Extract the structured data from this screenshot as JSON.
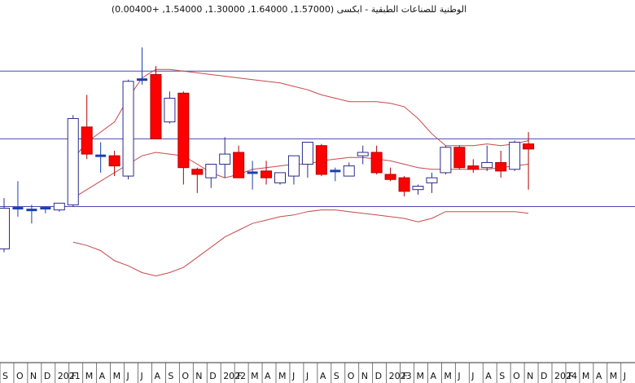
{
  "chart_data": {
    "type": "candlestick",
    "title": "الوطنية للصناعات الطبقية - ابكسى (1.57000, 1.64000, 1.30000, 1.54000, +0.00400)",
    "period": "monthly",
    "x_labels": [
      "S",
      "O",
      "N",
      "D",
      "2021",
      "F",
      "M",
      "A",
      "M",
      "J",
      "J",
      "A",
      "S",
      "O",
      "N",
      "D",
      "2022",
      "F",
      "M",
      "A",
      "M",
      "J",
      "J",
      "A",
      "S",
      "O",
      "N",
      "D",
      "2023",
      "F",
      "M",
      "A",
      "M",
      "J",
      "J",
      "A",
      "S",
      "O",
      "N",
      "D",
      "2024",
      "F",
      "M",
      "A",
      "M",
      "J"
    ],
    "ylim": [
      0.35,
      2.3
    ],
    "horizontal_lines": [
      2.0,
      1.6,
      1.2
    ],
    "grid": false,
    "colors": {
      "bull_body": "#ffffff",
      "bull_border": "#2b2b8c",
      "bear_body": "#ff0000",
      "bear_border": "#b00000",
      "doji": "#1a3fb0",
      "bollinger": "#c8484a",
      "hline": "#4a4ab0",
      "axis": "#333333"
    },
    "candles": [
      {
        "date": "2020-09",
        "open": 0.95,
        "high": 1.25,
        "low": 0.93,
        "close": 1.19
      },
      {
        "date": "2020-10",
        "open": 1.19,
        "high": 1.35,
        "low": 1.14,
        "close": 1.19
      },
      {
        "date": "2020-11",
        "open": 1.18,
        "high": 1.21,
        "low": 1.1,
        "close": 1.18
      },
      {
        "date": "2020-12",
        "open": 1.18,
        "high": 1.2,
        "low": 1.16,
        "close": 1.19
      },
      {
        "date": "2021-01",
        "open": 1.18,
        "high": 1.22,
        "low": 1.17,
        "close": 1.22
      },
      {
        "date": "2021-02",
        "open": 1.21,
        "high": 1.74,
        "low": 1.2,
        "close": 1.72
      },
      {
        "date": "2021-03",
        "open": 1.67,
        "high": 1.86,
        "low": 1.48,
        "close": 1.51
      },
      {
        "date": "2021-04",
        "open": 1.5,
        "high": 1.58,
        "low": 1.4,
        "close": 1.5
      },
      {
        "date": "2021-05",
        "open": 1.5,
        "high": 1.53,
        "low": 1.38,
        "close": 1.44
      },
      {
        "date": "2021-06",
        "open": 1.38,
        "high": 1.95,
        "low": 1.36,
        "close": 1.94
      },
      {
        "date": "2021-07",
        "open": 1.95,
        "high": 2.14,
        "low": 1.92,
        "close": 1.95
      },
      {
        "date": "2021-08",
        "open": 1.98,
        "high": 2.03,
        "low": 1.6,
        "close": 1.6
      },
      {
        "date": "2021-09",
        "open": 1.7,
        "high": 1.88,
        "low": 1.69,
        "close": 1.84
      },
      {
        "date": "2021-10",
        "open": 1.87,
        "high": 1.88,
        "low": 1.33,
        "close": 1.43
      },
      {
        "date": "2021-11",
        "open": 1.42,
        "high": 1.43,
        "low": 1.28,
        "close": 1.39
      },
      {
        "date": "2021-12",
        "open": 1.37,
        "high": 1.44,
        "low": 1.31,
        "close": 1.45
      },
      {
        "date": "2022-01",
        "open": 1.45,
        "high": 1.61,
        "low": 1.37,
        "close": 1.51
      },
      {
        "date": "2022-02",
        "open": 1.52,
        "high": 1.56,
        "low": 1.38,
        "close": 1.37
      },
      {
        "date": "2022-03",
        "open": 1.4,
        "high": 1.47,
        "low": 1.3,
        "close": 1.4
      },
      {
        "date": "2022-04",
        "open": 1.41,
        "high": 1.47,
        "low": 1.33,
        "close": 1.37
      },
      {
        "date": "2022-05",
        "open": 1.34,
        "high": 1.4,
        "low": 1.33,
        "close": 1.4
      },
      {
        "date": "2022-06",
        "open": 1.38,
        "high": 1.5,
        "low": 1.33,
        "close": 1.5
      },
      {
        "date": "2022-07",
        "open": 1.45,
        "high": 1.58,
        "low": 1.37,
        "close": 1.58
      },
      {
        "date": "2022-08",
        "open": 1.56,
        "high": 1.57,
        "low": 1.38,
        "close": 1.39
      },
      {
        "date": "2022-09",
        "open": 1.41,
        "high": 1.43,
        "low": 1.35,
        "close": 1.41
      },
      {
        "date": "2022-10",
        "open": 1.38,
        "high": 1.46,
        "low": 1.38,
        "close": 1.44
      },
      {
        "date": "2022-11",
        "open": 1.5,
        "high": 1.56,
        "low": 1.45,
        "close": 1.52
      },
      {
        "date": "2022-12",
        "open": 1.52,
        "high": 1.56,
        "low": 1.39,
        "close": 1.4
      },
      {
        "date": "2023-01",
        "open": 1.39,
        "high": 1.43,
        "low": 1.35,
        "close": 1.36
      },
      {
        "date": "2023-02",
        "open": 1.37,
        "high": 1.38,
        "low": 1.26,
        "close": 1.29
      },
      {
        "date": "2023-03",
        "open": 1.3,
        "high": 1.33,
        "low": 1.27,
        "close": 1.32
      },
      {
        "date": "2023-04",
        "open": 1.34,
        "high": 1.4,
        "low": 1.28,
        "close": 1.37
      },
      {
        "date": "2023-05",
        "open": 1.4,
        "high": 1.56,
        "low": 1.39,
        "close": 1.55
      },
      {
        "date": "2023-06",
        "open": 1.55,
        "high": 1.56,
        "low": 1.42,
        "close": 1.43
      },
      {
        "date": "2023-07",
        "open": 1.44,
        "high": 1.48,
        "low": 1.4,
        "close": 1.42
      },
      {
        "date": "2023-08",
        "open": 1.43,
        "high": 1.56,
        "low": 1.41,
        "close": 1.46
      },
      {
        "date": "2023-09",
        "open": 1.46,
        "high": 1.53,
        "low": 1.37,
        "close": 1.41
      },
      {
        "date": "2023-10",
        "open": 1.42,
        "high": 1.59,
        "low": 1.41,
        "close": 1.58
      },
      {
        "date": "2023-11",
        "open": 1.57,
        "high": 1.64,
        "low": 1.3,
        "close": 1.54
      }
    ],
    "bollinger": {
      "upper": [
        null,
        null,
        null,
        null,
        null,
        1.48,
        1.58,
        1.64,
        1.7,
        1.84,
        1.96,
        2.01,
        2.01,
        2.0,
        1.99,
        1.98,
        1.97,
        1.96,
        1.95,
        1.94,
        1.93,
        1.91,
        1.89,
        1.86,
        1.84,
        1.82,
        1.82,
        1.82,
        1.81,
        1.79,
        1.72,
        1.63,
        1.56,
        1.56,
        1.56,
        1.57,
        1.56,
        1.57,
        1.59
      ],
      "middle": [
        null,
        null,
        null,
        null,
        null,
        1.25,
        1.3,
        1.35,
        1.4,
        1.45,
        1.5,
        1.52,
        1.51,
        1.5,
        1.45,
        1.4,
        1.37,
        1.39,
        1.42,
        1.43,
        1.44,
        1.45,
        1.45,
        1.47,
        1.48,
        1.49,
        1.49,
        1.48,
        1.47,
        1.45,
        1.43,
        1.42,
        1.42,
        1.42,
        1.42,
        1.42,
        1.43,
        1.44,
        1.45
      ],
      "lower": [
        null,
        null,
        null,
        null,
        null,
        0.99,
        0.97,
        0.94,
        0.88,
        0.85,
        0.81,
        0.79,
        0.81,
        0.84,
        0.9,
        0.96,
        1.02,
        1.06,
        1.1,
        1.12,
        1.14,
        1.15,
        1.17,
        1.18,
        1.18,
        1.17,
        1.16,
        1.15,
        1.14,
        1.13,
        1.11,
        1.13,
        1.17,
        1.17,
        1.17,
        1.17,
        1.17,
        1.17,
        1.16
      ]
    }
  }
}
